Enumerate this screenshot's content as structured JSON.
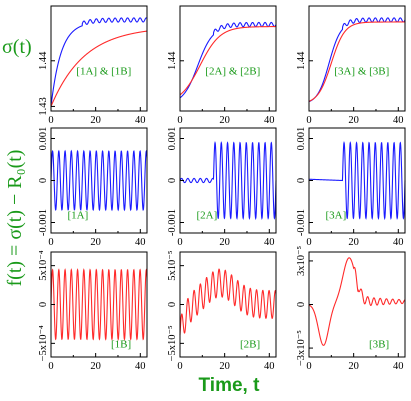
{
  "figure": {
    "ylabel_top": "σ(t)",
    "ylabel_side": "f(t) = σ(t) − R₀(t)",
    "xlabel": "Time,  t"
  },
  "colors": {
    "blue": "#1a1aff",
    "red": "#ff2a2a",
    "green": "#1a9a1a"
  },
  "chart_data": [
    {
      "type": "line",
      "id": "1AB",
      "label": "[1A] & [1B]",
      "xlim": [
        0,
        43
      ],
      "ylim": [
        1.429,
        1.452
      ],
      "xticks": [
        "0",
        "20",
        "40"
      ],
      "yticks": [
        "1.43",
        "1.44"
      ],
      "series": [
        {
          "color": "blue",
          "model": "sat_osc",
          "y0": 1.43,
          "ysat": 1.4485,
          "tau": 4.5,
          "amp": 0.0009,
          "period": 2.8,
          "onset": 14
        },
        {
          "color": "red",
          "model": "sat",
          "y0": 1.43,
          "ysat": 1.4475,
          "tau": 15
        }
      ]
    },
    {
      "type": "line",
      "id": "2AB",
      "label": "[2A] & [2B]",
      "xlim": [
        0,
        43
      ],
      "ylim": [
        1.429,
        1.452
      ],
      "xticks": [
        "0",
        "20",
        "40"
      ],
      "yticks": [
        "1.44"
      ],
      "series": [
        {
          "color": "blue",
          "model": "sig_osc",
          "y0": 1.4305,
          "ysat": 1.4475,
          "mid": 8,
          "width": 3.3,
          "amp": 0.0009,
          "period": 2.8,
          "onset": 15
        },
        {
          "color": "red",
          "model": "sig",
          "y0": 1.4305,
          "ysat": 1.4475,
          "mid": 9,
          "width": 4.5
        }
      ]
    },
    {
      "type": "line",
      "id": "3AB",
      "label": "[3A] & [3B]",
      "xlim": [
        0,
        43
      ],
      "ylim": [
        1.429,
        1.452
      ],
      "xticks": [
        "0",
        "20",
        "40"
      ],
      "yticks": [
        "1.44"
      ],
      "series": [
        {
          "color": "blue",
          "model": "sig_osc",
          "y0": 1.4305,
          "ysat": 1.4485,
          "mid": 9,
          "width": 2.6,
          "amp": 0.0009,
          "period": 2.8,
          "onset": 15
        },
        {
          "color": "red",
          "model": "sig",
          "y0": 1.4305,
          "ysat": 1.4485,
          "mid": 10,
          "width": 3
        }
      ]
    },
    {
      "type": "line",
      "id": "1A",
      "label": "[1A]",
      "xlim": [
        0,
        43
      ],
      "ylim": [
        -0.00125,
        0.00125
      ],
      "xticks": [
        "0",
        "20",
        "40"
      ],
      "yticks": [
        "0.001",
        "0",
        "-0.001"
      ],
      "series": [
        {
          "color": "blue",
          "model": "osc",
          "amp": 0.0007,
          "period": 2.8,
          "onset": 0,
          "pre_amp": 0
        }
      ]
    },
    {
      "type": "line",
      "id": "2A",
      "label": "[2A]",
      "xlim": [
        0,
        43
      ],
      "ylim": [
        -0.00125,
        0.00125
      ],
      "xticks": [
        "0",
        "20",
        "40"
      ],
      "yticks": [
        "0.001",
        "0",
        "-0.001"
      ],
      "series": [
        {
          "color": "blue",
          "model": "osc",
          "amp": 0.0009,
          "period": 2.8,
          "onset": 15,
          "pre_amp": 5e-05
        }
      ]
    },
    {
      "type": "line",
      "id": "3A",
      "label": "[3A]",
      "xlim": [
        0,
        43
      ],
      "ylim": [
        -0.00125,
        0.00125
      ],
      "xticks": [
        "0",
        "20",
        "40"
      ],
      "yticks": [
        "0.001",
        "0",
        "-0.001"
      ],
      "series": [
        {
          "color": "blue",
          "model": "osc",
          "amp": 0.0009,
          "period": 2.8,
          "onset": 15,
          "pre_amp": 0,
          "pre_drift": 3e-05
        }
      ]
    },
    {
      "type": "line",
      "id": "1B",
      "label": "[1B]",
      "xlim": [
        0,
        43
      ],
      "ylim": [
        -0.00068,
        0.00068
      ],
      "xticks": [
        "0",
        "20",
        "40"
      ],
      "yticks": [
        "5x10⁻⁴",
        "0",
        "−5x10⁻⁴"
      ],
      "series": [
        {
          "color": "red",
          "model": "osc",
          "amp": 0.00045,
          "period": 2.8,
          "onset": 0,
          "pre_amp": 0
        }
      ]
    },
    {
      "type": "line",
      "id": "2B",
      "label": "[2B]",
      "xlim": [
        0,
        43
      ],
      "ylim": [
        -6.8e-05,
        6.8e-05
      ],
      "xticks": [
        "0",
        "20",
        "40"
      ],
      "yticks": [
        "5x10⁻⁵",
        "0",
        "−5x10⁻⁵"
      ],
      "series": [
        {
          "color": "red",
          "model": "osc_bump",
          "amp": 1.8e-05,
          "period": 2.8,
          "bump": 2.8e-05,
          "bump_mid": 18,
          "bump_width": 9,
          "start": -4e-05
        }
      ]
    },
    {
      "type": "line",
      "id": "3B",
      "label": "[3B]",
      "xlim": [
        0,
        43
      ],
      "ylim": [
        -3.6e-05,
        3.6e-05
      ],
      "xticks": [
        "0",
        "20",
        "40"
      ],
      "yticks": [
        "3x10⁻⁵",
        "0",
        "−3x10⁻⁵"
      ],
      "series": [
        {
          "color": "red",
          "model": "wiggle3b"
        }
      ]
    }
  ]
}
